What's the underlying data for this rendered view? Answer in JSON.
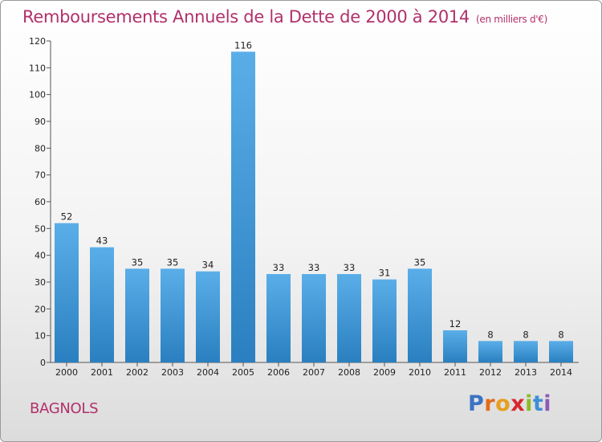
{
  "title": "Remboursements Annuels de la Dette de 2000 à 2014",
  "subtitle": "(en milliers d'€)",
  "commune": "BAGNOLS",
  "brand": {
    "letters": [
      "P",
      "r",
      "o",
      "x",
      "i",
      "t",
      "i"
    ],
    "colors": [
      "#3b73c4",
      "#e36b1c",
      "#e79f1e",
      "#d9262f",
      "#8cbb26",
      "#3f8fd6",
      "#8c5bb5"
    ]
  },
  "colors": {
    "bar_light": "#5aaee8",
    "bar_dark": "#2a7fc0",
    "accent": "#b1306b"
  },
  "chart_data": {
    "type": "bar",
    "categories": [
      "2000",
      "2001",
      "2002",
      "2003",
      "2004",
      "2005",
      "2006",
      "2007",
      "2008",
      "2009",
      "2010",
      "2011",
      "2012",
      "2013",
      "2014"
    ],
    "values": [
      52,
      43,
      35,
      35,
      34,
      116,
      33,
      33,
      33,
      31,
      35,
      12,
      8,
      8,
      8
    ],
    "ylim": [
      0,
      120
    ],
    "yticks": [
      0,
      10,
      20,
      30,
      40,
      50,
      60,
      70,
      80,
      90,
      100,
      110,
      120
    ],
    "xlabel": "",
    "ylabel": "",
    "grid": false,
    "legend": "none"
  }
}
